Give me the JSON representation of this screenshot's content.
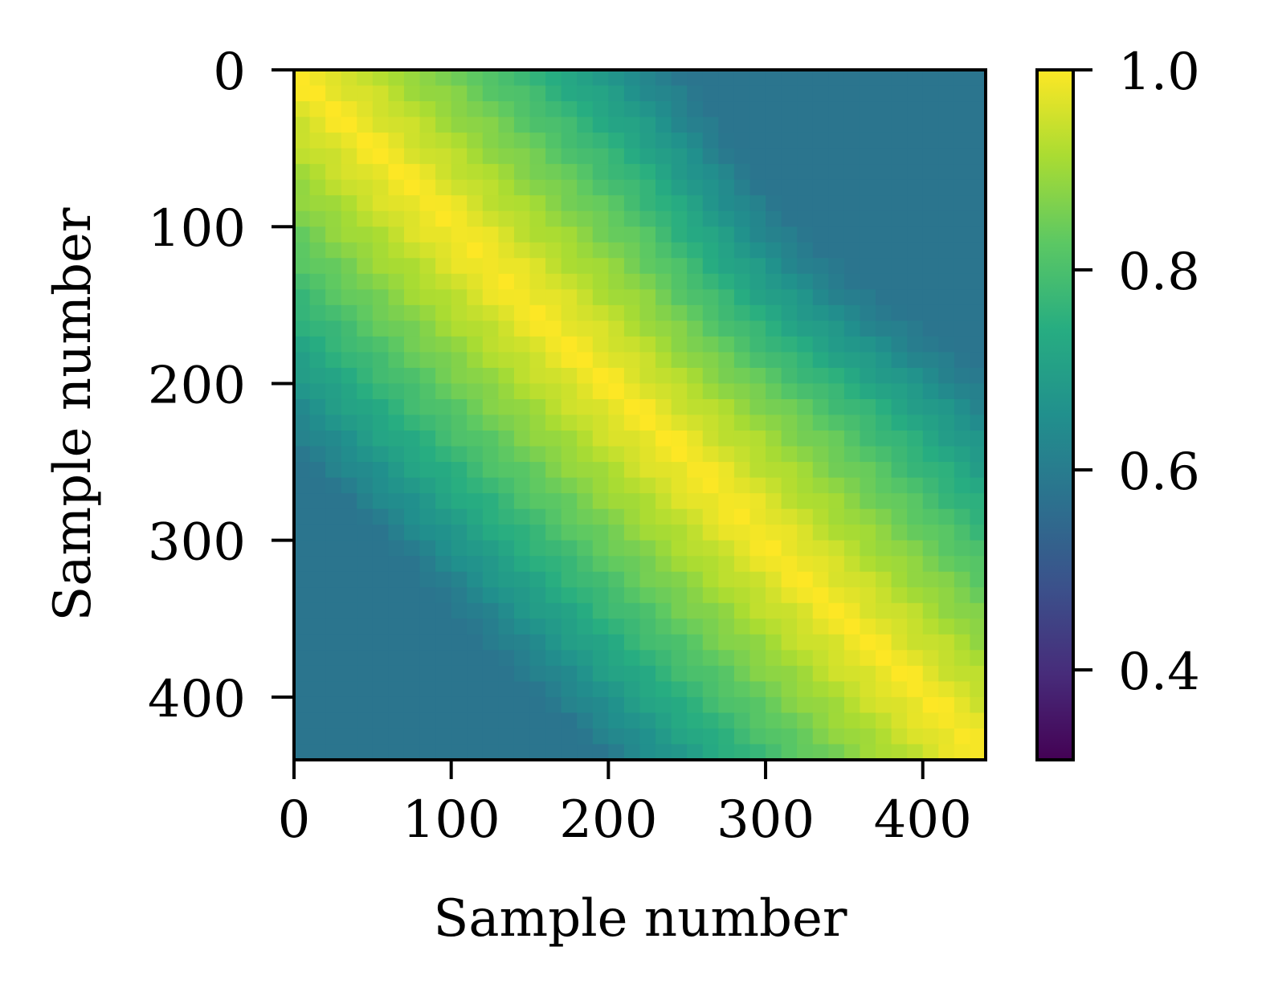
{
  "chart_data": {
    "type": "heatmap",
    "title": "",
    "xlabel": "Sample number",
    "ylabel": "Sample number",
    "x_range": [
      0,
      440
    ],
    "y_range": [
      0,
      440
    ],
    "x_ticks": [
      0,
      100,
      200,
      300,
      400
    ],
    "x_tick_labels": [
      "0",
      "100",
      "200",
      "300",
      "400"
    ],
    "y_ticks": [
      0,
      100,
      200,
      300,
      400
    ],
    "y_tick_labels": [
      "0",
      "100",
      "200",
      "300",
      "400"
    ],
    "y_axis_inverted": true,
    "colormap": "viridis",
    "color_range": [
      0.31,
      1.0
    ],
    "colorbar_ticks": [
      0.4,
      0.6,
      0.8,
      1.0
    ],
    "colorbar_tick_labels": [
      "0.4",
      "0.6",
      "0.8",
      "1.0"
    ],
    "matrix_description": "similarity matrix with value 1.0 on the diagonal, decaying with distance between samples",
    "grid_size": 44,
    "corner_values": {
      "top_right": 0.6,
      "bottom_left": 0.62,
      "min_region_value": 0.58
    },
    "grid": false,
    "legend": "colorbar-right"
  }
}
